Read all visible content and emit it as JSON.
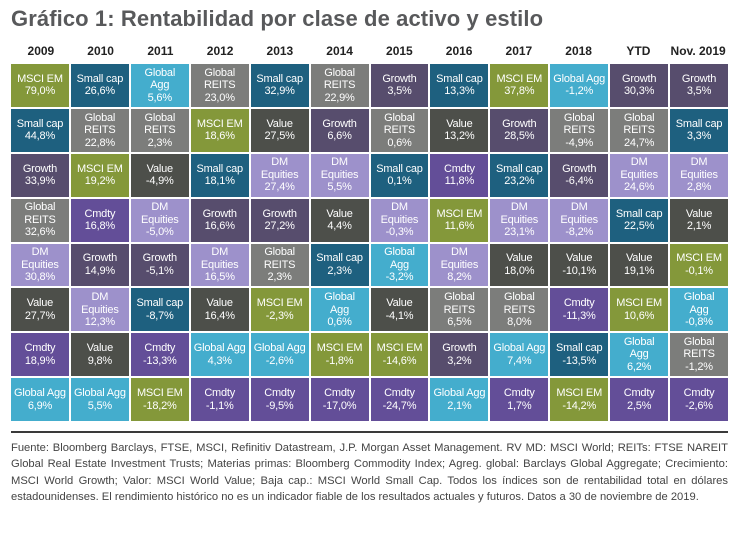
{
  "title": "Gráfico 1: Rentabilidad por clase de activo y estilo",
  "colors": {
    "MSCI EM": "#84983a",
    "Small cap": "#1e607f",
    "Global Agg": "#44adcd",
    "Global REITS": "#7c7d7b",
    "Value": "#4d4f4a",
    "Growth": "#574d6d",
    "DM Equities": "#9d91cb",
    "Cmdty": "#634e98"
  },
  "chart_data": {
    "type": "table",
    "title": "Gráfico 1: Rentabilidad por clase de activo y estilo",
    "columns": [
      "2009",
      "2010",
      "2011",
      "2012",
      "2013",
      "2014",
      "2015",
      "2016",
      "2017",
      "2018",
      "YTD",
      "Nov. 2019"
    ],
    "rank_order": "highest return at top",
    "cells": [
      [
        {
          "asset": "MSCI EM",
          "label": [
            "MSCI EM"
          ],
          "value": "79,0%"
        },
        {
          "asset": "Small cap",
          "label": [
            "Small cap"
          ],
          "value": "44,8%"
        },
        {
          "asset": "Growth",
          "label": [
            "Growth"
          ],
          "value": "33,9%"
        },
        {
          "asset": "Global REITS",
          "label": [
            "Global",
            "REITS"
          ],
          "value": "32,6%"
        },
        {
          "asset": "DM Equities",
          "label": [
            "DM",
            "Equities"
          ],
          "value": "30,8%"
        },
        {
          "asset": "Value",
          "label": [
            "Value"
          ],
          "value": "27,7%"
        },
        {
          "asset": "Cmdty",
          "label": [
            "Cmdty"
          ],
          "value": "18,9%"
        },
        {
          "asset": "Global Agg",
          "label": [
            "Global Agg"
          ],
          "value": "6,9%"
        }
      ],
      [
        {
          "asset": "Small cap",
          "label": [
            "Small cap"
          ],
          "value": "26,6%"
        },
        {
          "asset": "Global REITS",
          "label": [
            "Global",
            "REITS"
          ],
          "value": "22,8%"
        },
        {
          "asset": "MSCI EM",
          "label": [
            "MSCI EM"
          ],
          "value": "19,2%"
        },
        {
          "asset": "Cmdty",
          "label": [
            "Cmdty"
          ],
          "value": "16,8%"
        },
        {
          "asset": "Growth",
          "label": [
            "Growth"
          ],
          "value": "14,9%"
        },
        {
          "asset": "DM Equities",
          "label": [
            "DM",
            "Equities"
          ],
          "value": "12,3%"
        },
        {
          "asset": "Value",
          "label": [
            "Value"
          ],
          "value": "9,8%"
        },
        {
          "asset": "Global Agg",
          "label": [
            "Global Agg"
          ],
          "value": "5,5%"
        }
      ],
      [
        {
          "asset": "Global Agg",
          "label": [
            "Global",
            "Agg"
          ],
          "value": "5,6%"
        },
        {
          "asset": "Global REITS",
          "label": [
            "Global",
            "REITS"
          ],
          "value": "2,3%"
        },
        {
          "asset": "Value",
          "label": [
            "Value"
          ],
          "value": "-4,9%"
        },
        {
          "asset": "DM Equities",
          "label": [
            "DM",
            "Equities"
          ],
          "value": "-5,0%"
        },
        {
          "asset": "Growth",
          "label": [
            "Growth"
          ],
          "value": "-5,1%"
        },
        {
          "asset": "Small cap",
          "label": [
            "Small cap"
          ],
          "value": "-8,7%"
        },
        {
          "asset": "Cmdty",
          "label": [
            "Cmdty"
          ],
          "value": "-13,3%"
        },
        {
          "asset": "MSCI EM",
          "label": [
            "MSCI EM"
          ],
          "value": "-18,2%"
        }
      ],
      [
        {
          "asset": "Global REITS",
          "label": [
            "Global",
            "REITS"
          ],
          "value": "23,0%"
        },
        {
          "asset": "MSCI EM",
          "label": [
            "MSCI EM"
          ],
          "value": "18,6%"
        },
        {
          "asset": "Small cap",
          "label": [
            "Small cap"
          ],
          "value": "18,1%"
        },
        {
          "asset": "Growth",
          "label": [
            "Growth"
          ],
          "value": "16,6%"
        },
        {
          "asset": "DM Equities",
          "label": [
            "DM",
            "Equities"
          ],
          "value": "16,5%"
        },
        {
          "asset": "Value",
          "label": [
            "Value"
          ],
          "value": "16,4%"
        },
        {
          "asset": "Global Agg",
          "label": [
            "Global Agg"
          ],
          "value": "4,3%"
        },
        {
          "asset": "Cmdty",
          "label": [
            "Cmdty"
          ],
          "value": "-1,1%"
        }
      ],
      [
        {
          "asset": "Small cap",
          "label": [
            "Small cap"
          ],
          "value": "32,9%"
        },
        {
          "asset": "Value",
          "label": [
            "Value"
          ],
          "value": "27,5%"
        },
        {
          "asset": "DM Equities",
          "label": [
            "DM",
            "Equities"
          ],
          "value": "27,4%"
        },
        {
          "asset": "Growth",
          "label": [
            "Growth"
          ],
          "value": "27,2%"
        },
        {
          "asset": "Global REITS",
          "label": [
            "Global",
            "REITS"
          ],
          "value": "2,3%"
        },
        {
          "asset": "MSCI EM",
          "label": [
            "MSCI EM"
          ],
          "value": "-2,3%"
        },
        {
          "asset": "Global Agg",
          "label": [
            "Global Agg"
          ],
          "value": "-2,6%"
        },
        {
          "asset": "Cmdty",
          "label": [
            "Cmdty"
          ],
          "value": "-9,5%"
        }
      ],
      [
        {
          "asset": "Global REITS",
          "label": [
            "Global",
            "REITS"
          ],
          "value": "22,9%"
        },
        {
          "asset": "Growth",
          "label": [
            "Growth"
          ],
          "value": "6,6%"
        },
        {
          "asset": "DM Equities",
          "label": [
            "DM",
            "Equities"
          ],
          "value": "5,5%"
        },
        {
          "asset": "Value",
          "label": [
            "Value"
          ],
          "value": "4,4%"
        },
        {
          "asset": "Small cap",
          "label": [
            "Small cap"
          ],
          "value": "2,3%"
        },
        {
          "asset": "Global Agg",
          "label": [
            "Global",
            "Agg"
          ],
          "value": "0,6%"
        },
        {
          "asset": "MSCI EM",
          "label": [
            "MSCI EM"
          ],
          "value": "-1,8%"
        },
        {
          "asset": "Cmdty",
          "label": [
            "Cmdty"
          ],
          "value": "-17,0%"
        }
      ],
      [
        {
          "asset": "Growth",
          "label": [
            "Growth"
          ],
          "value": "3,5%"
        },
        {
          "asset": "Global REITS",
          "label": [
            "Global",
            "REITS"
          ],
          "value": "0,6%"
        },
        {
          "asset": "Small cap",
          "label": [
            "Small cap"
          ],
          "value": "0,1%"
        },
        {
          "asset": "DM Equities",
          "label": [
            "DM",
            "Equities"
          ],
          "value": "-0,3%"
        },
        {
          "asset": "Global Agg",
          "label": [
            "Global",
            "Agg"
          ],
          "value": "-3,2%"
        },
        {
          "asset": "Value",
          "label": [
            "Value"
          ],
          "value": "-4,1%"
        },
        {
          "asset": "MSCI EM",
          "label": [
            "MSCI EM"
          ],
          "value": "-14,6%"
        },
        {
          "asset": "Cmdty",
          "label": [
            "Cmdty"
          ],
          "value": "-24,7%"
        }
      ],
      [
        {
          "asset": "Small cap",
          "label": [
            "Small cap"
          ],
          "value": "13,3%"
        },
        {
          "asset": "Value",
          "label": [
            "Value"
          ],
          "value": "13,2%"
        },
        {
          "asset": "Cmdty",
          "label": [
            "Cmdty"
          ],
          "value": "11,8%"
        },
        {
          "asset": "MSCI EM",
          "label": [
            "MSCI EM"
          ],
          "value": "11,6%"
        },
        {
          "asset": "DM Equities",
          "label": [
            "DM",
            "Equities"
          ],
          "value": "8,2%"
        },
        {
          "asset": "Global REITS",
          "label": [
            "Global",
            "REITS"
          ],
          "value": "6,5%"
        },
        {
          "asset": "Growth",
          "label": [
            "Growth"
          ],
          "value": "3,2%"
        },
        {
          "asset": "Global Agg",
          "label": [
            "Global Agg"
          ],
          "value": "2,1%"
        }
      ],
      [
        {
          "asset": "MSCI EM",
          "label": [
            "MSCI EM"
          ],
          "value": "37,8%"
        },
        {
          "asset": "Growth",
          "label": [
            "Growth"
          ],
          "value": "28,5%"
        },
        {
          "asset": "Small cap",
          "label": [
            "Small cap"
          ],
          "value": "23,2%"
        },
        {
          "asset": "DM Equities",
          "label": [
            "DM",
            "Equities"
          ],
          "value": "23,1%"
        },
        {
          "asset": "Value",
          "label": [
            "Value"
          ],
          "value": "18,0%"
        },
        {
          "asset": "Global REITS",
          "label": [
            "Global",
            "REITS"
          ],
          "value": "8,0%"
        },
        {
          "asset": "Global Agg",
          "label": [
            "Global Agg"
          ],
          "value": "7,4%"
        },
        {
          "asset": "Cmdty",
          "label": [
            "Cmdty"
          ],
          "value": "1,7%"
        }
      ],
      [
        {
          "asset": "Global Agg",
          "label": [
            "Global Agg"
          ],
          "value": "-1,2%"
        },
        {
          "asset": "Global REITS",
          "label": [
            "Global",
            "REITS"
          ],
          "value": "-4,9%"
        },
        {
          "asset": "Growth",
          "label": [
            "Growth"
          ],
          "value": "-6,4%"
        },
        {
          "asset": "DM Equities",
          "label": [
            "DM",
            "Equities"
          ],
          "value": "-8,2%"
        },
        {
          "asset": "Value",
          "label": [
            "Value"
          ],
          "value": "-10,1%"
        },
        {
          "asset": "Cmdty",
          "label": [
            "Cmdty"
          ],
          "value": "-11,3%"
        },
        {
          "asset": "Small cap",
          "label": [
            "Small cap"
          ],
          "value": "-13,5%"
        },
        {
          "asset": "MSCI EM",
          "label": [
            "MSCI EM"
          ],
          "value": "-14,2%"
        }
      ],
      [
        {
          "asset": "Growth",
          "label": [
            "Growth"
          ],
          "value": "30,3%"
        },
        {
          "asset": "Global REITS",
          "label": [
            "Global",
            "REITS"
          ],
          "value": "24,7%"
        },
        {
          "asset": "DM Equities",
          "label": [
            "DM",
            "Equities"
          ],
          "value": "24,6%"
        },
        {
          "asset": "Small cap",
          "label": [
            "Small cap"
          ],
          "value": "22,5%"
        },
        {
          "asset": "Value",
          "label": [
            "Value"
          ],
          "value": "19,1%"
        },
        {
          "asset": "MSCI EM",
          "label": [
            "MSCI EM"
          ],
          "value": "10,6%"
        },
        {
          "asset": "Global Agg",
          "label": [
            "Global",
            "Agg"
          ],
          "value": "6,2%"
        },
        {
          "asset": "Cmdty",
          "label": [
            "Cmdty"
          ],
          "value": "2,5%"
        }
      ],
      [
        {
          "asset": "Growth",
          "label": [
            "Growth"
          ],
          "value": "3,5%"
        },
        {
          "asset": "Small cap",
          "label": [
            "Small cap"
          ],
          "value": "3,3%"
        },
        {
          "asset": "DM Equities",
          "label": [
            "DM",
            "Equities"
          ],
          "value": "2,8%"
        },
        {
          "asset": "Value",
          "label": [
            "Value"
          ],
          "value": "2,1%"
        },
        {
          "asset": "MSCI EM",
          "label": [
            "MSCI EM"
          ],
          "value": "-0,1%"
        },
        {
          "asset": "Global Agg",
          "label": [
            "Global",
            "Agg"
          ],
          "value": "-0,8%"
        },
        {
          "asset": "Global REITS",
          "label": [
            "Global",
            "REITS"
          ],
          "value": "-1,2%"
        },
        {
          "asset": "Cmdty",
          "label": [
            "Cmdty"
          ],
          "value": "-2,6%"
        }
      ]
    ]
  },
  "footnote": "Fuente:  Bloomberg Barclays, FTSE, MSCI, Refinitiv Datastream, J.P. Morgan Asset Management.  RV MD:  MSCI World; REITs: FTSE NAREIT Global Real Estate Investment Trusts; Materias primas: Bloomberg Commodity Index; Agreg. global: Barclays Global Aggregate; Crecimiento: MSCI World Growth; Valor: MSCI World Value; Baja cap.: MSCI World Small Cap. Todos los índices son de rentabilidad total en dólares estadounidenses. El rendimiento histórico no es un indicador fiable de los resultados actuales y futuros. Datos a 30 de noviembre de 2019."
}
